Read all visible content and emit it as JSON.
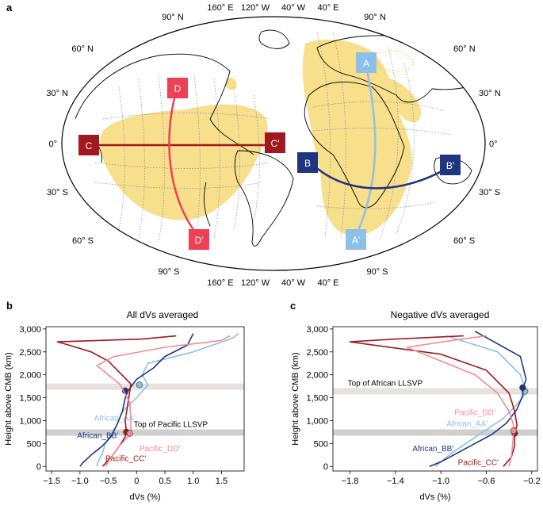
{
  "colors": {
    "llsvp": "#f7df8c",
    "profile_A": "#8cc0e8",
    "profile_B": "#1f3580",
    "profile_C": "#a3171e",
    "profile_D": "#ee3f55",
    "band": "#cfcfcf",
    "band_light": "#e6e3dc"
  },
  "panel_a": {
    "letter": "a",
    "lat_labels": [
      "90° N",
      "60° N",
      "30° N",
      "0°",
      "30° S",
      "60° S",
      "90° S"
    ],
    "lon_labels": [
      "160° E",
      "120° W",
      "40° W",
      "40° E"
    ],
    "profile_markers": [
      "A",
      "A′",
      "B",
      "B′",
      "C",
      "C′",
      "D",
      "D′"
    ]
  },
  "chart_data": [
    {
      "panel": "b",
      "type": "line",
      "title": "All dVs averaged",
      "xlabel": "dVs (%)",
      "ylabel": "Height above CMB (km)",
      "xlim": [
        -1.6,
        1.9
      ],
      "ylim": [
        -100,
        3050
      ],
      "xticks": [
        "−1.5",
        "−1.0",
        "−0.5",
        "0",
        "0.5",
        "1.0",
        "1.5"
      ],
      "yticks": [
        "0",
        "500",
        "1,000",
        "1,500",
        "2,000",
        "2,500",
        "3,000"
      ],
      "bands": [
        {
          "label": "Top of Pacific LLSVP",
          "y": 740
        },
        {
          "label": "",
          "y": 1740
        }
      ],
      "series": [
        {
          "name": "African_AA′",
          "color": "#8cc0e8",
          "x": [
            -0.7,
            -0.68,
            -0.6,
            -0.55,
            -0.45,
            -0.35,
            -0.25,
            0.0,
            0.2,
            0.1,
            0.2,
            1.0,
            1.7,
            1.8
          ],
          "y": [
            0,
            100,
            300,
            500,
            700,
            900,
            1200,
            1500,
            1780,
            2000,
            2250,
            2500,
            2800,
            2900
          ],
          "marker": {
            "x": 0.05,
            "y": 1780
          }
        },
        {
          "name": "African_BB′",
          "color": "#1f3580",
          "x": [
            -1.0,
            -0.95,
            -0.8,
            -0.6,
            -0.45,
            -0.35,
            -0.25,
            -0.2,
            -0.15,
            0.0,
            0.3,
            0.5,
            0.9,
            1.0
          ],
          "y": [
            0,
            80,
            250,
            450,
            650,
            900,
            1200,
            1500,
            1650,
            1900,
            2150,
            2400,
            2650,
            2900
          ],
          "marker": {
            "x": -0.2,
            "y": 1650
          }
        },
        {
          "name": "Pacific_CC′",
          "color": "#a3171e",
          "x": [
            -0.6,
            -0.45,
            -0.3,
            -0.2,
            -0.18,
            -0.2,
            -0.15,
            -0.1,
            -0.3,
            -0.5,
            -0.8,
            -1.2,
            -1.4,
            0.1,
            0.7
          ],
          "y": [
            0,
            200,
            450,
            650,
            750,
            1000,
            1400,
            1800,
            2050,
            2300,
            2500,
            2650,
            2720,
            2780,
            2850
          ],
          "marker": {
            "x": -0.18,
            "y": 750
          }
        },
        {
          "name": "Pacific_DD′",
          "color": "#f28b94",
          "x": [
            -0.55,
            -0.45,
            -0.3,
            -0.15,
            -0.1,
            -0.1,
            -0.12,
            -0.3,
            -0.5,
            -0.7,
            -0.4,
            0.5,
            1.5,
            1.65
          ],
          "y": [
            0,
            200,
            450,
            650,
            750,
            1000,
            1400,
            1800,
            2000,
            2200,
            2400,
            2600,
            2750,
            2850
          ],
          "marker": {
            "x": -0.12,
            "y": 720
          }
        }
      ]
    },
    {
      "panel": "c",
      "type": "line",
      "title": "Negative dVs averaged",
      "xlabel": "dVs (%)",
      "ylabel": "Height above CMB (km)",
      "xlim": [
        -1.95,
        -0.15
      ],
      "ylim": [
        -100,
        3050
      ],
      "xticks": [
        "−1.8",
        "−1.4",
        "−1.0",
        "−0.6",
        "−0.2"
      ],
      "yticks": [
        "0",
        "500",
        "1,000",
        "1,500",
        "2,000",
        "2,500",
        "3,000"
      ],
      "bands": [
        {
          "label": "Top of African LLSVP",
          "y": 1640
        },
        {
          "label": "",
          "y": 740
        }
      ],
      "series": [
        {
          "name": "African_AA′",
          "color": "#8cc0e8",
          "x": [
            -1.05,
            -1.0,
            -0.9,
            -0.75,
            -0.6,
            -0.45,
            -0.35,
            -0.28,
            -0.25,
            -0.3,
            -0.5,
            -0.95
          ],
          "y": [
            0,
            100,
            300,
            550,
            800,
            1050,
            1300,
            1500,
            1650,
            2000,
            2500,
            2850
          ],
          "marker": {
            "x": -0.26,
            "y": 1640
          }
        },
        {
          "name": "African_BB′",
          "color": "#1f3580",
          "x": [
            -1.1,
            -1.0,
            -0.85,
            -0.7,
            -0.55,
            -0.42,
            -0.33,
            -0.28,
            -0.28,
            -0.25,
            -0.3,
            -0.7
          ],
          "y": [
            0,
            100,
            300,
            500,
            700,
            950,
            1250,
            1550,
            1700,
            1900,
            2400,
            2950
          ],
          "marker": {
            "x": -0.28,
            "y": 1720
          }
        },
        {
          "name": "Pacific_CC′",
          "color": "#a3171e",
          "x": [
            -0.45,
            -0.38,
            -0.35,
            -0.35,
            -0.33,
            -0.35,
            -0.4,
            -0.6,
            -1.0,
            -1.6,
            -1.8,
            -1.4,
            -0.8
          ],
          "y": [
            0,
            200,
            450,
            720,
            900,
            1200,
            1600,
            2100,
            2450,
            2650,
            2720,
            2780,
            2850
          ],
          "marker": {
            "x": -0.35,
            "y": 720
          }
        },
        {
          "name": "Pacific_DD′",
          "color": "#f28b94",
          "x": [
            -0.4,
            -0.38,
            -0.37,
            -0.36,
            -0.36,
            -0.4,
            -0.5,
            -0.7,
            -1.0,
            -1.3,
            -0.9,
            -0.6
          ],
          "y": [
            0,
            200,
            450,
            720,
            900,
            1200,
            1600,
            2000,
            2300,
            2600,
            2750,
            2850
          ],
          "marker": {
            "x": -0.36,
            "y": 780
          }
        }
      ]
    }
  ]
}
